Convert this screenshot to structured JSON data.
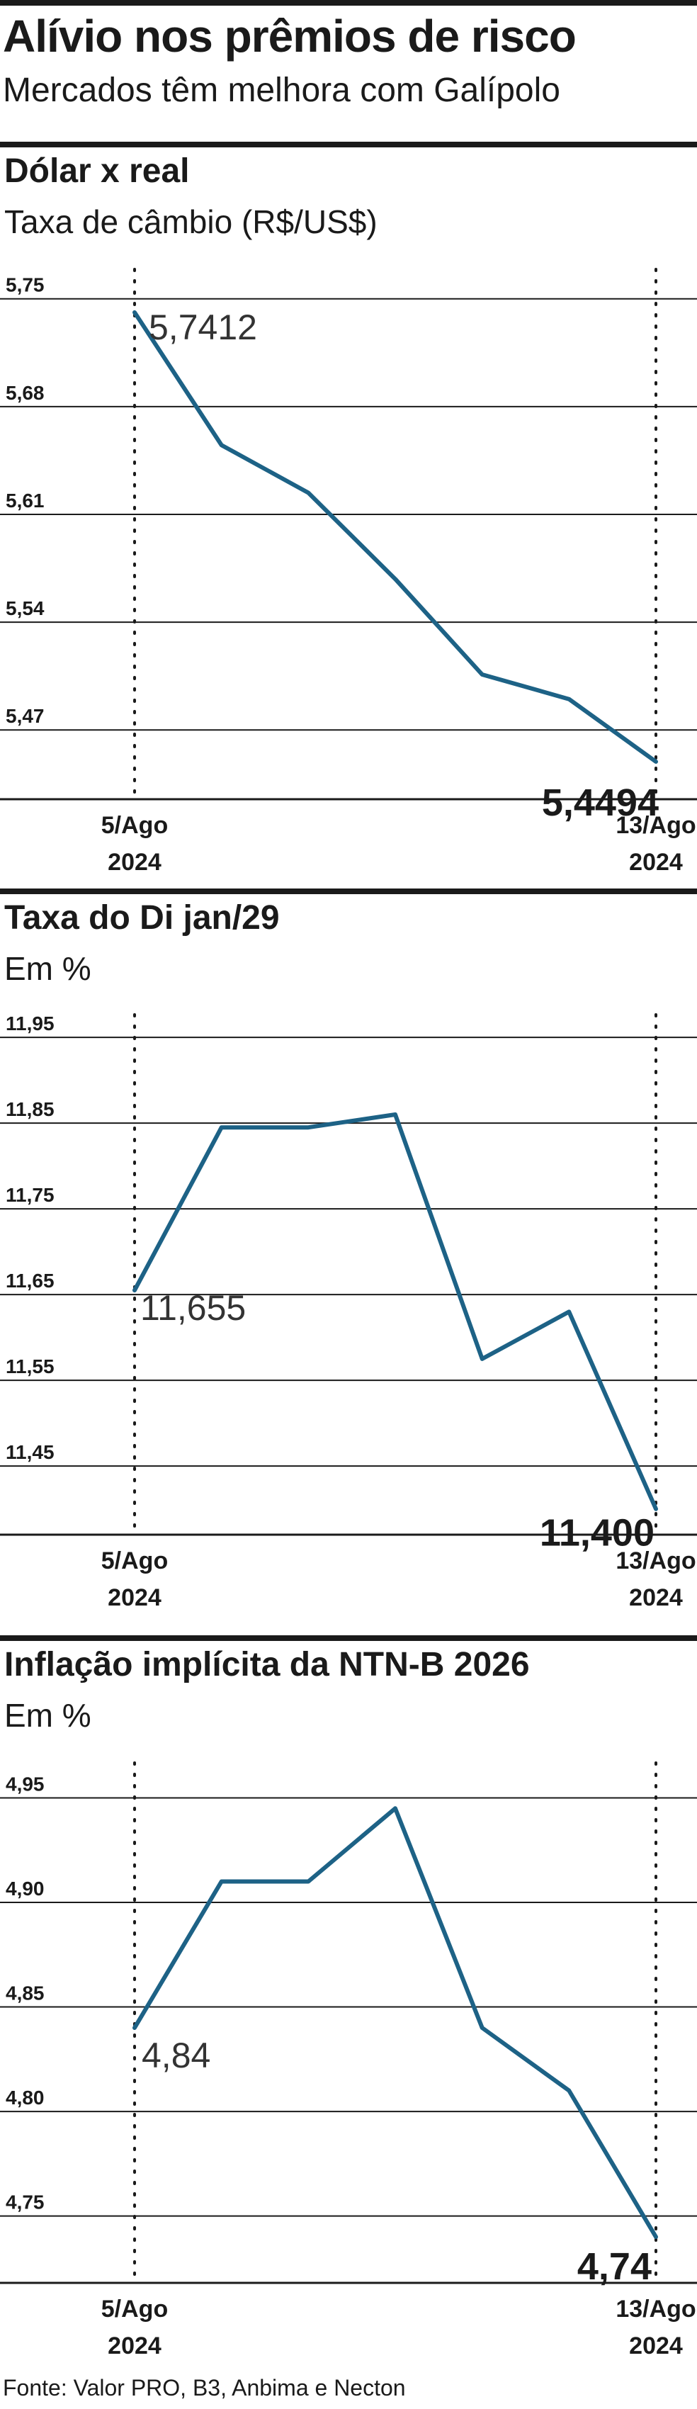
{
  "header": {
    "title": "Alívio nos prêmios de risco",
    "subtitle": "Mercados têm melhora com Galípolo"
  },
  "source": "Fonte: Valor PRO, B3, Anbima e Necton",
  "colors": {
    "line": "#1d6286",
    "text": "#1a1a1a",
    "grid": "#1a1a1a"
  },
  "chart_data": [
    {
      "type": "line",
      "title": "Dólar x real",
      "ylabel": "Taxa de câmbio (R$/US$)",
      "x_labels": [
        [
          "5/Ago",
          "2024"
        ],
        [
          "13/Ago",
          "2024"
        ]
      ],
      "yticks": [
        5.75,
        5.68,
        5.61,
        5.54,
        5.47
      ],
      "ytick_labels": [
        "5,75",
        "5,68",
        "5,61",
        "5,54",
        "5,47"
      ],
      "ylim": [
        5.425,
        5.76
      ],
      "values": [
        5.7412,
        5.655,
        5.624,
        5.568,
        5.506,
        5.49,
        5.4494
      ],
      "start_label": "5,7412",
      "end_label": "5,4494"
    },
    {
      "type": "line",
      "title": "Taxa do Di jan/29",
      "ylabel": "Em %",
      "x_labels": [
        [
          "5/Ago",
          "2024"
        ],
        [
          "13/Ago",
          "2024"
        ]
      ],
      "yticks": [
        11.95,
        11.85,
        11.75,
        11.65,
        11.55,
        11.45
      ],
      "ytick_labels": [
        "11,95",
        "11,85",
        "11,75",
        "11,65",
        "11,55",
        "11,45"
      ],
      "ylim": [
        11.37,
        11.96
      ],
      "values": [
        11.655,
        11.845,
        11.845,
        11.86,
        11.575,
        11.63,
        11.4
      ],
      "start_label": "11,655",
      "end_label": "11,400"
    },
    {
      "type": "line",
      "title": "Inflação implícita da NTN-B 2026",
      "ylabel": "Em %",
      "x_labels": [
        [
          "5/Ago",
          "2024"
        ],
        [
          "13/Ago",
          "2024"
        ]
      ],
      "yticks": [
        4.95,
        4.9,
        4.85,
        4.8,
        4.75
      ],
      "ytick_labels": [
        "4,95",
        "4,90",
        "4,85",
        "4,80",
        "4,75"
      ],
      "ylim": [
        4.718,
        4.96
      ],
      "values": [
        4.84,
        4.91,
        4.91,
        4.945,
        4.84,
        4.81,
        4.74
      ],
      "start_label": "4,84",
      "end_label": "4,74"
    }
  ]
}
